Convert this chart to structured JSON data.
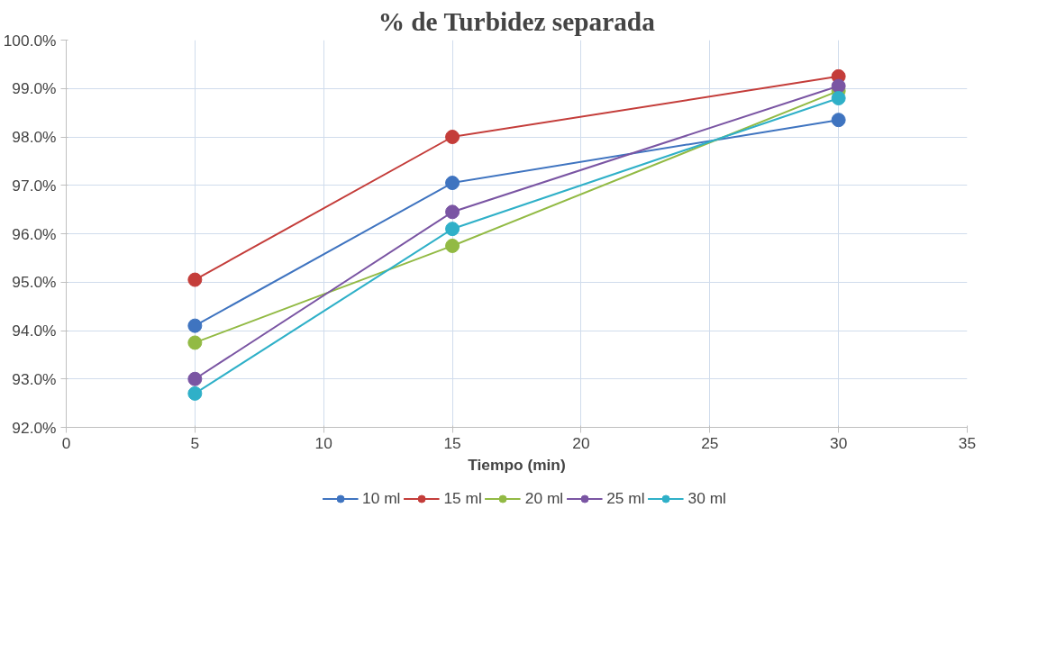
{
  "chart_data": {
    "type": "line",
    "title": "% de Turbidez separada",
    "xlabel": "Tiempo (min)",
    "x": [
      5,
      15,
      30
    ],
    "series": [
      {
        "name": "10 ml",
        "color": "#3f74c0",
        "values": [
          94.1,
          97.05,
          98.35
        ]
      },
      {
        "name": "15 ml",
        "color": "#c43d3a",
        "values": [
          95.05,
          98.0,
          99.25
        ]
      },
      {
        "name": "20 ml",
        "color": "#92ba44",
        "values": [
          93.75,
          95.75,
          98.95
        ]
      },
      {
        "name": "25 ml",
        "color": "#7a55a3",
        "values": [
          93.0,
          96.45,
          99.05
        ]
      },
      {
        "name": "30 ml",
        "color": "#2fb0c8",
        "values": [
          92.7,
          96.1,
          98.8
        ]
      }
    ],
    "xlim": [
      0,
      35
    ],
    "xticks": [
      0,
      5,
      10,
      15,
      20,
      25,
      30,
      35
    ],
    "ylim": [
      92,
      100
    ],
    "yticks": [
      {
        "value": 92,
        "label": "92.0%"
      },
      {
        "value": 93,
        "label": "93.0%"
      },
      {
        "value": 94,
        "label": "94.0%"
      },
      {
        "value": 95,
        "label": "95.0%"
      },
      {
        "value": 96,
        "label": "96.0%"
      },
      {
        "value": 97,
        "label": "97.0%"
      },
      {
        "value": 98,
        "label": "98.0%"
      },
      {
        "value": 99,
        "label": "99.0%"
      },
      {
        "value": 100,
        "label": "100.0%"
      }
    ],
    "grid": true,
    "legend": "bottom",
    "marker": "circle",
    "line_style": "solid"
  }
}
